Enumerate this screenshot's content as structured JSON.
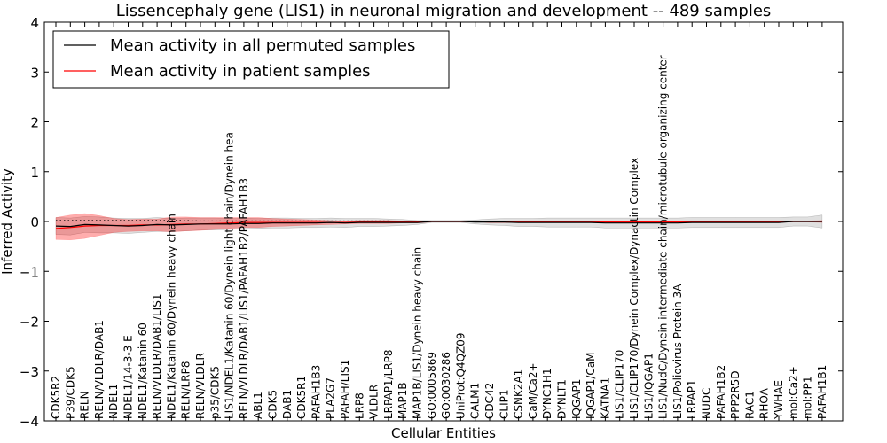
{
  "chart_data": {
    "type": "line",
    "title": "Lissencephaly gene (LIS1) in neuronal migration and development -- 489 samples",
    "xlabel": "Cellular Entities",
    "ylabel": "Inferred Activity",
    "ylim": [
      -4,
      4
    ],
    "yticks": [
      "4",
      "3",
      "2",
      "1",
      "0",
      "−1",
      "−2",
      "−3",
      "−4"
    ],
    "legend": {
      "placement": "top-left",
      "entries": [
        {
          "label": "Mean activity in all permuted samples",
          "color": "#000000"
        },
        {
          "label": "Mean activity in patient samples",
          "color": "#ff0000"
        }
      ]
    },
    "categories": [
      "CDK5R2",
      "P39/CDK5",
      "RELN",
      "RELN/VLDLR/DAB1",
      "NDEL1",
      "NDEL1/14-3-3 E",
      "NDEL1/Katanin 60",
      "RELN/VLDLR/DAB1/LIS1",
      "NDEL1/Katanin 60/Dynein heavy chain",
      "RELN/LRP8",
      "RELN/VLDLR",
      "p35/CDK5",
      "LIS1/NDEL1/Katanin 60/Dynein light chain/Dynein hea",
      "RELN/VLDLR/DAB1/LIS1/PAFAH1B2/PAFAH1B3",
      "ABL1",
      "CDK5",
      "DAB1",
      "CDK5R1",
      "PAFAH1B3",
      "PLA2G7",
      "PAFAH/LIS1",
      "LRP8",
      "VLDLR",
      "LRPAP1/LRP8",
      "MAP1B",
      "MAP1B/LIS1/Dynein heavy chain",
      "GO:0005869",
      "GO:0030286",
      "UniProt:Q4QZ09",
      "CALM1",
      "CDC42",
      "CLIP1",
      "CSNK2A1",
      "CaM/Ca2+",
      "DYNC1H1",
      "DYNLT1",
      "IQGAP1",
      "IQGAP1/CaM",
      "KATNA1",
      "LIS1/CLIP170",
      "LIS1/CLIP170/Dynein Complex/Dynactin Complex",
      "LIS1/IQGAP1",
      "LIS1/NudC/Dynein intermediate chain/microtubule organizing center",
      "LIS1/Poliovirus Protein 3A",
      "LRPAP1",
      "NUDC",
      "PAFAH1B2",
      "PPP2R5D",
      "RAC1",
      "RHOA",
      "YWHAE",
      "mol:Ca2+",
      "mol:PP1",
      "PAFAH1B1"
    ],
    "series": [
      {
        "name": "Mean activity in all permuted samples",
        "color": "#000000",
        "values": [
          -0.09,
          -0.1,
          -0.06,
          -0.07,
          -0.08,
          -0.09,
          -0.08,
          -0.06,
          -0.07,
          -0.06,
          -0.05,
          -0.05,
          -0.05,
          -0.04,
          -0.04,
          -0.03,
          -0.03,
          -0.03,
          -0.03,
          -0.02,
          -0.03,
          -0.02,
          -0.02,
          -0.02,
          -0.02,
          -0.02,
          0.0,
          0.0,
          0.0,
          -0.01,
          -0.01,
          -0.01,
          -0.02,
          -0.02,
          -0.02,
          -0.02,
          -0.02,
          -0.02,
          -0.03,
          -0.03,
          -0.03,
          -0.03,
          -0.03,
          -0.03,
          -0.02,
          -0.02,
          -0.02,
          -0.02,
          -0.02,
          -0.02,
          -0.02,
          0.0,
          0.0,
          0.0
        ],
        "band": [
          0.17,
          0.17,
          0.16,
          0.16,
          0.15,
          0.15,
          0.14,
          0.14,
          0.13,
          0.13,
          0.12,
          0.12,
          0.11,
          0.11,
          0.1,
          0.1,
          0.1,
          0.09,
          0.09,
          0.09,
          0.09,
          0.08,
          0.08,
          0.07,
          0.06,
          0.04,
          0.02,
          0.02,
          0.02,
          0.04,
          0.06,
          0.07,
          0.08,
          0.08,
          0.09,
          0.09,
          0.09,
          0.09,
          0.1,
          0.1,
          0.1,
          0.1,
          0.1,
          0.1,
          0.1,
          0.1,
          0.1,
          0.1,
          0.1,
          0.1,
          0.1,
          0.09,
          0.09,
          0.13
        ]
      },
      {
        "name": "Mean activity in patient samples",
        "color": "#ff0000",
        "values": [
          -0.14,
          -0.12,
          -0.09,
          -0.08,
          -0.08,
          -0.08,
          -0.07,
          -0.07,
          -0.06,
          -0.05,
          -0.05,
          -0.04,
          -0.03,
          -0.02,
          -0.02,
          -0.02,
          -0.02,
          -0.02,
          -0.02,
          -0.02,
          -0.02,
          -0.01,
          -0.01,
          -0.01,
          -0.01,
          -0.01,
          0.0,
          0.0,
          0.0,
          0.0,
          -0.01,
          -0.01,
          -0.01,
          -0.01,
          -0.01,
          -0.01,
          -0.01,
          -0.01,
          -0.01,
          -0.01,
          -0.01,
          -0.01,
          -0.01,
          -0.01,
          -0.01,
          -0.01,
          -0.01,
          -0.01,
          -0.01,
          -0.01,
          -0.01,
          0.0,
          0.0,
          0.0
        ],
        "band": [
          0.22,
          0.25,
          0.25,
          0.2,
          0.14,
          0.12,
          0.12,
          0.12,
          0.15,
          0.14,
          0.13,
          0.12,
          0.11,
          0.1,
          0.1,
          0.08,
          0.07,
          0.06,
          0.05,
          0.04,
          0.03,
          0.03,
          0.03,
          0.03,
          0.02,
          0.02,
          0.01,
          0.01,
          0.01,
          0.01,
          0.01,
          0.01,
          0.01,
          0.01,
          0.01,
          0.01,
          0.01,
          0.01,
          0.01,
          0.01,
          0.01,
          0.01,
          0.01,
          0.01,
          0.01,
          0.01,
          0.01,
          0.01,
          0.01,
          0.01,
          0.01,
          0.01,
          0.01,
          0.02
        ]
      }
    ],
    "zero_dotted_values": [
      0.02,
      0.02,
      0.02,
      0.02,
      0.02,
      0.02,
      0.02,
      0.02,
      0.02,
      0.02,
      0.01,
      0.01,
      0.01,
      0.01,
      0.01,
      0.01,
      0.01,
      0.01,
      0.01,
      0.01,
      0.01,
      0.01,
      0.01,
      0.01,
      0.0,
      0.0,
      0.0,
      0.0,
      0.0,
      0.0,
      0.0,
      0.0,
      0.0,
      0.0,
      0.0,
      0.0,
      0.0,
      0.0,
      0.0,
      0.0,
      0.0,
      0.0,
      0.0,
      0.0,
      0.0,
      0.0,
      0.0,
      0.0,
      0.0,
      0.0,
      0.0,
      0.0,
      0.0,
      0.0
    ]
  }
}
